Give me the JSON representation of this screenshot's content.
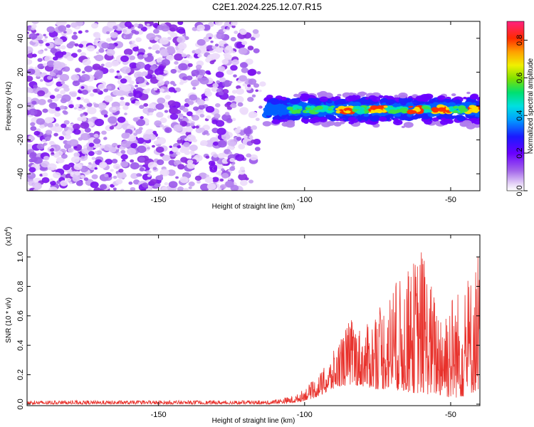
{
  "title": "C2E1.2024.225.12.07.R15",
  "chart_data": [
    {
      "type": "heatmap",
      "xlabel": "Height of straight line (km)",
      "ylabel": "Frequency (Hz)",
      "xlim": [
        -195,
        -40
      ],
      "ylim": [
        -50,
        50
      ],
      "x_ticks": [
        -150,
        -100,
        -50
      ],
      "y_ticks": [
        -40,
        -20,
        0,
        20,
        40
      ],
      "x_tick_labels": [
        "-150",
        "-100",
        "-50"
      ],
      "y_tick_labels": [
        "-40",
        "-20",
        "0",
        "20",
        "40"
      ],
      "colorbar": {
        "label": "Normalized spectral amplitude",
        "range": [
          0,
          0.9
        ],
        "ticks": [
          0.0,
          0.2,
          0.4,
          0.6,
          0.8
        ],
        "tick_labels": [
          "0.0",
          "0.2",
          "0.4",
          "0.6",
          "0.8"
        ]
      },
      "noise_region_x": [
        -195,
        -113
      ],
      "signal_band": {
        "x": [
          -113,
          -40
        ],
        "center_frequency": -2,
        "half_width": 4,
        "peak_x": [
          -87,
          -75,
          -62,
          -53,
          -42
        ]
      }
    },
    {
      "type": "line",
      "xlabel": "Height of straight line (km)",
      "ylabel": "SNR (10 * v/v)",
      "scale_label": "(x10",
      "scale_exponent": "4",
      "scale_close": ")",
      "xlim": [
        -195,
        -40
      ],
      "ylim": [
        -0.01,
        1.15
      ],
      "x_ticks": [
        -150,
        -100,
        -50
      ],
      "y_ticks": [
        0.0,
        0.2,
        0.4,
        0.6,
        0.8,
        1.0
      ],
      "x_tick_labels": [
        "-150",
        "-100",
        "-50"
      ],
      "y_tick_labels": [
        "0.0",
        "0.2",
        "0.4",
        "0.6",
        "0.8",
        "1.0"
      ],
      "series_color": "#e8312b",
      "envelope": {
        "x": [
          -195,
          -112,
          -103,
          -97,
          -92,
          -88,
          -84,
          -80,
          -75,
          -70,
          -65,
          -60,
          -55,
          -50,
          -45,
          -40
        ],
        "upper": [
          0.025,
          0.025,
          0.06,
          0.16,
          0.28,
          0.45,
          0.6,
          0.5,
          0.65,
          0.8,
          0.9,
          1.08,
          0.72,
          0.78,
          0.8,
          1.05
        ],
        "lower": [
          0.0,
          0.0,
          0.01,
          0.04,
          0.08,
          0.12,
          0.13,
          0.12,
          0.1,
          0.1,
          0.08,
          0.07,
          0.06,
          0.04,
          0.05,
          0.1
        ]
      }
    }
  ]
}
